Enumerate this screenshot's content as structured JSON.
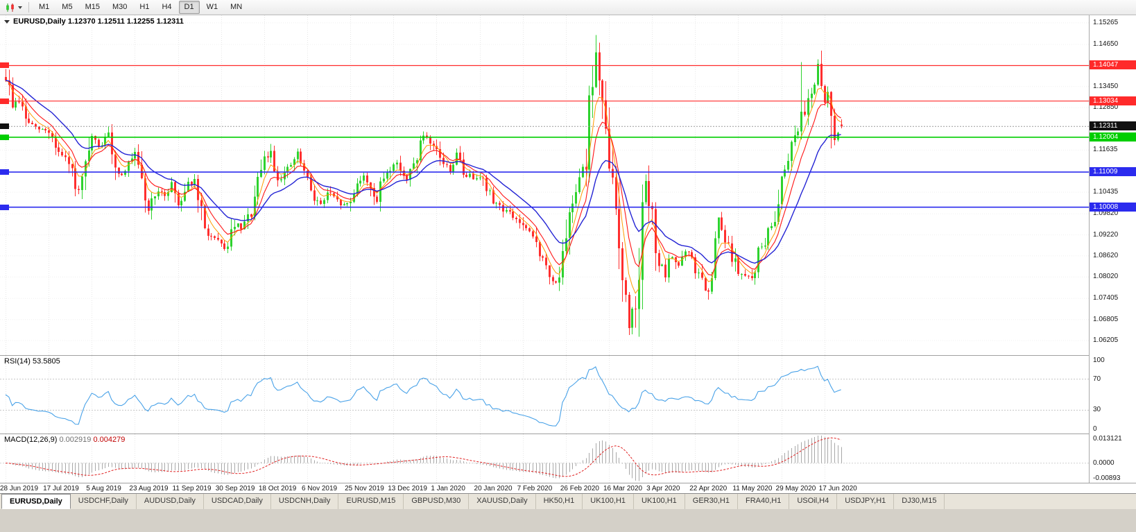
{
  "toolbar": {
    "chart_icon": "candlestick-chart-icon",
    "dropdown_icon": "chevron-down-icon",
    "timeframes": [
      "M1",
      "M5",
      "M15",
      "M30",
      "H1",
      "H4",
      "D1",
      "W1",
      "MN"
    ],
    "active_timeframe": "D1"
  },
  "chart_title": "EURUSD,Daily 1.12370 1.12511 1.12255 1.12311",
  "rsi_panel": {
    "name": "RSI(14)",
    "value": "53.5805",
    "line_color": "#49a2e8",
    "levels": [
      70,
      30
    ],
    "scale_labels": [
      {
        "v": 100,
        "t": "100"
      },
      {
        "v": 70,
        "t": "70"
      },
      {
        "v": 30,
        "t": "30"
      },
      {
        "v": 0,
        "t": "0"
      }
    ]
  },
  "macd_panel": {
    "name": "MACD(12,26,9)",
    "value_main": "0.002919",
    "value_signal": "0.004279",
    "scale_top": 0.013121,
    "scale_bottom": -0.00893,
    "scale_labels": [
      {
        "v": 0.013121,
        "t": "0.013121"
      },
      {
        "v": 0,
        "t": "0.0000"
      },
      {
        "v": -0.00893,
        "t": "-0.00893"
      }
    ],
    "hist_color": "#a8a8a8",
    "signal_color": "#e02020"
  },
  "tabs": {
    "active_index": 0,
    "items": [
      "EURUSD,Daily",
      "USDCHF,Daily",
      "AUDUSD,Daily",
      "USDCAD,Daily",
      "USDCNH,Daily",
      "EURUSD,M15",
      "GBPUSD,M30",
      "XAUUSD,Daily",
      "HK50,H1",
      "UK100,H1",
      "UK100,H1",
      "GER30,H1",
      "FRA40,H1",
      "USOil,H4",
      "USDJPY,H1",
      "DJ30,M15"
    ],
    "per_tab_icon": "chart-tab-icon"
  },
  "chart_data": {
    "type": "candlestick",
    "title": "EURUSD,Daily",
    "current_ohlc": {
      "open": 1.1237,
      "high": 1.12511,
      "low": 1.12255,
      "close": 1.12311
    },
    "y_axis": {
      "top": 1.1548,
      "bottom": 1.0579,
      "tick_labels": [
        "1.15265",
        "1.14650",
        "1.13450",
        "1.12850",
        "1.11635",
        "1.10435",
        "1.09820",
        "1.09220",
        "1.08620",
        "1.08020",
        "1.07405",
        "1.06805",
        "1.06205"
      ]
    },
    "x_axis": {
      "tick_step": 13,
      "tick_labels": [
        "28 Jun 2019",
        "17 Jul 2019",
        "5 Aug 2019",
        "23 Aug 2019",
        "11 Sep 2019",
        "30 Sep 2019",
        "18 Oct 2019",
        "6 Nov 2019",
        "25 Nov 2019",
        "13 Dec 2019",
        "1 Jan 2020",
        "20 Jan 2020",
        "7 Feb 2020",
        "26 Feb 2020",
        "16 Mar 2020",
        "3 Apr 2020",
        "22 Apr 2020",
        "11 May 2020",
        "29 May 2020",
        "17 Jun 2020"
      ]
    },
    "hlines": [
      {
        "price": 1.14047,
        "label": "1.14047",
        "color": "#ff2a2a",
        "width": 1.2
      },
      {
        "price": 1.13034,
        "label": "1.13034",
        "color": "#ff2a2a",
        "width": 1.2
      },
      {
        "price": 1.12004,
        "label": "1.12004",
        "color": "#00ce00",
        "width": 1.6
      },
      {
        "price": 1.11009,
        "label": "1.11009",
        "color": "#2b2bee",
        "width": 1.6
      },
      {
        "price": 1.10008,
        "label": "1.10008",
        "color": "#2b2bee",
        "width": 1.6
      }
    ],
    "current_price_line": {
      "price": 1.12311,
      "label": "1.12311",
      "color": "#111111"
    },
    "num_candles": 253,
    "seed": 9,
    "up_color": "#2ed22e",
    "down_color": "#ff2e2e",
    "moving_averages": [
      {
        "name": "ma-fast",
        "period": 5,
        "color": "#ff9a00",
        "width": 1
      },
      {
        "name": "ma-mid",
        "period": 9,
        "color": "#ff1515",
        "width": 1.1
      },
      {
        "name": "ma-slow",
        "period": 20,
        "color": "#2323d4",
        "width": 1.4
      }
    ],
    "indicators": [
      {
        "name": "RSI",
        "period": 14,
        "current": 53.5805
      },
      {
        "name": "MACD",
        "fast": 12,
        "slow": 26,
        "signal": 9,
        "current_macd": 0.002919,
        "current_signal": 0.004279
      }
    ],
    "price_anchors": [
      [
        0,
        1.1372
      ],
      [
        2,
        1.1292
      ],
      [
        4,
        1.1306
      ],
      [
        6,
        1.1252
      ],
      [
        9,
        1.1224
      ],
      [
        13,
        1.1218
      ],
      [
        16,
        1.1156
      ],
      [
        19,
        1.1122
      ],
      [
        22,
        1.1042
      ],
      [
        24,
        1.1108
      ],
      [
        26,
        1.1196
      ],
      [
        28,
        1.1172
      ],
      [
        31,
        1.1202
      ],
      [
        34,
        1.1092
      ],
      [
        36,
        1.1112
      ],
      [
        39,
        1.1146
      ],
      [
        41,
        1.1062
      ],
      [
        43,
        1.0992
      ],
      [
        45,
        1.1042
      ],
      [
        48,
        1.1036
      ],
      [
        50,
        1.1072
      ],
      [
        52,
        1.1008
      ],
      [
        55,
        1.1072
      ],
      [
        57,
        1.1066
      ],
      [
        60,
        1.0936
      ],
      [
        63,
        1.0906
      ],
      [
        65,
        1.0892
      ],
      [
        67,
        1.0882
      ],
      [
        69,
        1.0952
      ],
      [
        71,
        1.0936
      ],
      [
        74,
        1.0986
      ],
      [
        76,
        1.1062
      ],
      [
        78,
        1.1136
      ],
      [
        80,
        1.1156
      ],
      [
        82,
        1.1082
      ],
      [
        85,
        1.1106
      ],
      [
        88,
        1.1152
      ],
      [
        91,
        1.1072
      ],
      [
        93,
        1.1032
      ],
      [
        95,
        1.1006
      ],
      [
        97,
        1.1042
      ],
      [
        100,
        1.1016
      ],
      [
        102,
        1.1006
      ],
      [
        104,
        1.1016
      ],
      [
        106,
        1.1076
      ],
      [
        108,
        1.1086
      ],
      [
        110,
        1.1062
      ],
      [
        112,
        1.1016
      ],
      [
        114,
        1.1086
      ],
      [
        117,
        1.1126
      ],
      [
        119,
        1.1116
      ],
      [
        121,
        1.1076
      ],
      [
        123,
        1.1122
      ],
      [
        126,
        1.1206
      ],
      [
        128,
        1.1172
      ],
      [
        130,
        1.1162
      ],
      [
        132,
        1.1126
      ],
      [
        134,
        1.1106
      ],
      [
        136,
        1.1152
      ],
      [
        138,
        1.1096
      ],
      [
        141,
        1.1086
      ],
      [
        143,
        1.1096
      ],
      [
        145,
        1.1052
      ],
      [
        147,
        1.1022
      ],
      [
        150,
        1.0996
      ],
      [
        152,
        1.0982
      ],
      [
        154,
        1.0966
      ],
      [
        156,
        1.0946
      ],
      [
        158,
        1.0922
      ],
      [
        160,
        1.0906
      ],
      [
        162,
        1.0846
      ],
      [
        164,
        1.0802
      ],
      [
        165,
        1.0786
      ],
      [
        167,
        1.0806
      ],
      [
        169,
        1.0892
      ],
      [
        171,
        1.1022
      ],
      [
        173,
        1.1102
      ],
      [
        175,
        1.1136
      ],
      [
        176,
        1.1282
      ],
      [
        178,
        1.1442
      ],
      [
        179,
        1.1352
      ],
      [
        181,
        1.1192
      ],
      [
        183,
        1.1066
      ],
      [
        185,
        1.0922
      ],
      [
        187,
        1.0722
      ],
      [
        188,
        1.0662
      ],
      [
        190,
        1.0742
      ],
      [
        192,
        1.0972
      ],
      [
        193,
        1.1062
      ],
      [
        195,
        1.0962
      ],
      [
        197,
        1.0842
      ],
      [
        199,
        1.0802
      ],
      [
        201,
        1.0862
      ],
      [
        203,
        1.0836
      ],
      [
        205,
        1.0872
      ],
      [
        207,
        1.0856
      ],
      [
        208,
        1.0822
      ],
      [
        210,
        1.0792
      ],
      [
        212,
        1.0742
      ],
      [
        214,
        1.0882
      ],
      [
        215,
        1.0962
      ],
      [
        217,
        1.0902
      ],
      [
        219,
        1.0862
      ],
      [
        221,
        1.0816
      ],
      [
        223,
        1.0802
      ],
      [
        225,
        1.0796
      ],
      [
        227,
        1.0872
      ],
      [
        229,
        1.0902
      ],
      [
        231,
        1.0946
      ],
      [
        233,
        1.1012
      ],
      [
        234,
        1.1092
      ],
      [
        236,
        1.1152
      ],
      [
        238,
        1.1212
      ],
      [
        240,
        1.1256
      ],
      [
        242,
        1.1312
      ],
      [
        244,
        1.1362
      ],
      [
        245,
        1.1396
      ],
      [
        246,
        1.1332
      ],
      [
        247,
        1.1296
      ],
      [
        248,
        1.1332
      ],
      [
        249,
        1.1262
      ],
      [
        250,
        1.1206
      ],
      [
        251,
        1.1216
      ],
      [
        252,
        1.12311
      ]
    ],
    "spikes": [
      {
        "i": 177,
        "high": 1.1405
      },
      {
        "i": 178,
        "high": 1.1492
      },
      {
        "i": 188,
        "low": 1.0636
      },
      {
        "i": 189,
        "low": 1.0655
      },
      {
        "i": 240,
        "high": 1.1415
      },
      {
        "i": 245,
        "high": 1.1422
      },
      {
        "i": 249,
        "low": 1.1168
      }
    ]
  }
}
